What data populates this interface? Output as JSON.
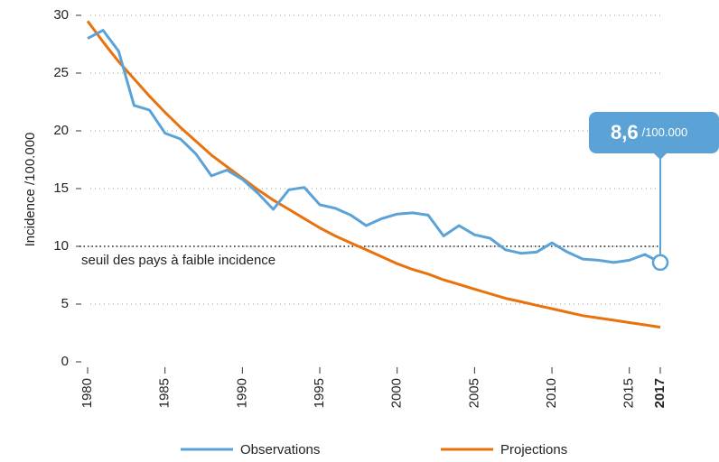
{
  "chart_data": {
    "type": "line",
    "y_label": "Incidence /100.000",
    "x": [
      1980,
      1981,
      1982,
      1983,
      1984,
      1985,
      1986,
      1987,
      1988,
      1989,
      1990,
      1991,
      1992,
      1993,
      1994,
      1995,
      1996,
      1997,
      1998,
      1999,
      2000,
      2001,
      2002,
      2003,
      2004,
      2005,
      2006,
      2007,
      2008,
      2009,
      2010,
      2011,
      2012,
      2013,
      2014,
      2015,
      2016,
      2017
    ],
    "series": [
      {
        "name": "Observations",
        "color": "#5ba3d6",
        "values": [
          28.0,
          28.7,
          26.9,
          22.2,
          21.8,
          19.8,
          19.3,
          18.0,
          16.1,
          16.6,
          15.8,
          14.6,
          13.2,
          14.9,
          15.1,
          13.6,
          13.3,
          12.7,
          11.8,
          12.4,
          12.8,
          12.9,
          12.7,
          10.9,
          11.8,
          11.0,
          10.7,
          9.7,
          9.4,
          9.5,
          10.3,
          9.5,
          8.9,
          8.8,
          8.6,
          8.8,
          9.3,
          8.6
        ]
      },
      {
        "name": "Projections",
        "color": "#e8720c",
        "values": [
          29.5,
          27.7,
          26.0,
          24.5,
          23.0,
          21.6,
          20.3,
          19.1,
          17.9,
          16.9,
          15.9,
          14.9,
          14.0,
          13.2,
          12.4,
          11.6,
          10.9,
          10.3,
          9.7,
          9.1,
          8.5,
          8.0,
          7.6,
          7.1,
          6.7,
          6.3,
          5.9,
          5.5,
          5.2,
          4.9,
          4.6,
          4.3,
          4.0,
          3.8,
          3.6,
          3.4,
          3.2,
          3.0
        ]
      }
    ],
    "xlim": [
      1980,
      2017
    ],
    "xticks": [
      1980,
      1985,
      1990,
      1995,
      2000,
      2005,
      2010,
      2015,
      2017
    ],
    "ylim": [
      0,
      30
    ],
    "yticks": [
      0,
      5,
      10,
      15,
      20,
      25,
      30
    ],
    "grid": true,
    "threshold": {
      "value": 10,
      "label": "seuil des pays à faible incidence"
    },
    "annotation": {
      "x": 2017,
      "value": 8.6,
      "label": "8,6",
      "unit": "/100.000"
    },
    "legend": "bottom"
  }
}
